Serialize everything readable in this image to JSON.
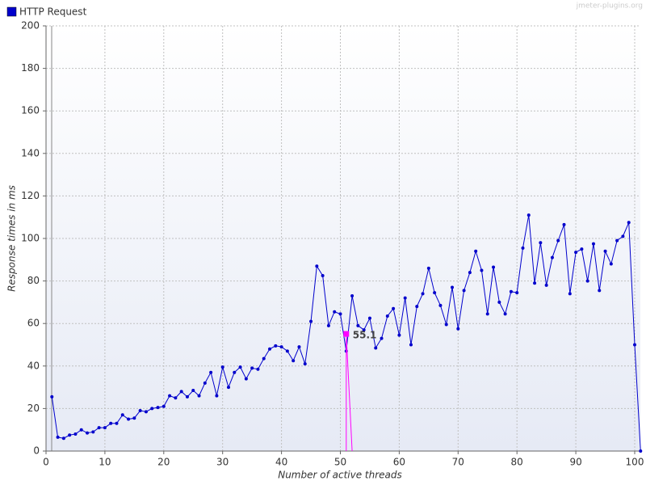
{
  "chart_data": {
    "type": "line",
    "legend_label": "HTTP Request",
    "watermark": "jmeter-plugins.org",
    "x_label": "Number of active threads",
    "y_label": "Response times in ms",
    "xlim": [
      0,
      100
    ],
    "xticks": [
      0,
      10,
      20,
      30,
      40,
      50,
      60,
      70,
      80,
      90,
      100
    ],
    "ylim": [
      0,
      200
    ],
    "yticks": [
      0,
      20,
      40,
      60,
      80,
      100,
      120,
      140,
      160,
      180,
      200
    ],
    "grid": true,
    "x": [
      1,
      2,
      3,
      4,
      5,
      6,
      7,
      8,
      9,
      10,
      11,
      12,
      13,
      14,
      15,
      16,
      17,
      18,
      19,
      20,
      21,
      22,
      23,
      24,
      25,
      26,
      27,
      28,
      29,
      30,
      31,
      32,
      33,
      34,
      35,
      36,
      37,
      38,
      39,
      40,
      41,
      42,
      43,
      44,
      45,
      46,
      47,
      48,
      49,
      50,
      51,
      52,
      53,
      54,
      55,
      56,
      57,
      58,
      59,
      60,
      61,
      62,
      63,
      64,
      65,
      66,
      67,
      68,
      69,
      70,
      71,
      72,
      73,
      74,
      75,
      76,
      77,
      78,
      79,
      80,
      81,
      82,
      83,
      84,
      85,
      86,
      87,
      88,
      89,
      90,
      91,
      92,
      93,
      94,
      95,
      96,
      97,
      98,
      99,
      100,
      101
    ],
    "series": [
      {
        "name": "HTTP Request",
        "color": "#0000cc",
        "values": [
          25.5,
          6.5,
          6,
          7.5,
          8,
          10,
          8.5,
          9,
          11,
          11,
          13,
          13,
          17,
          15,
          15.5,
          19,
          18.5,
          20,
          20.5,
          21,
          26,
          25,
          28,
          25.5,
          28.5,
          26,
          32,
          37,
          26,
          39.5,
          30,
          37,
          39.5,
          34,
          39,
          38.5,
          43.5,
          48,
          49.5,
          49,
          47,
          42.5,
          49,
          41,
          61,
          87,
          82.5,
          59,
          65.5,
          64.5,
          47,
          73,
          59,
          57,
          62.5,
          48.5,
          53,
          63.5,
          67,
          54.5,
          72,
          50,
          68,
          74,
          86,
          74.5,
          68.5,
          59.5,
          77,
          57.5,
          75.5,
          84,
          94,
          85,
          64.5,
          86.5,
          70,
          64.5,
          75,
          74.5,
          95.5,
          111,
          79,
          98,
          78,
          91,
          99,
          106.5,
          74,
          93.5,
          95,
          80,
          97.5,
          75.5,
          94,
          88,
          99,
          101,
          107.5,
          50,
          0
        ]
      }
    ],
    "highlight": {
      "x": 51,
      "y": 55.1,
      "color": "#ff00ff"
    }
  }
}
